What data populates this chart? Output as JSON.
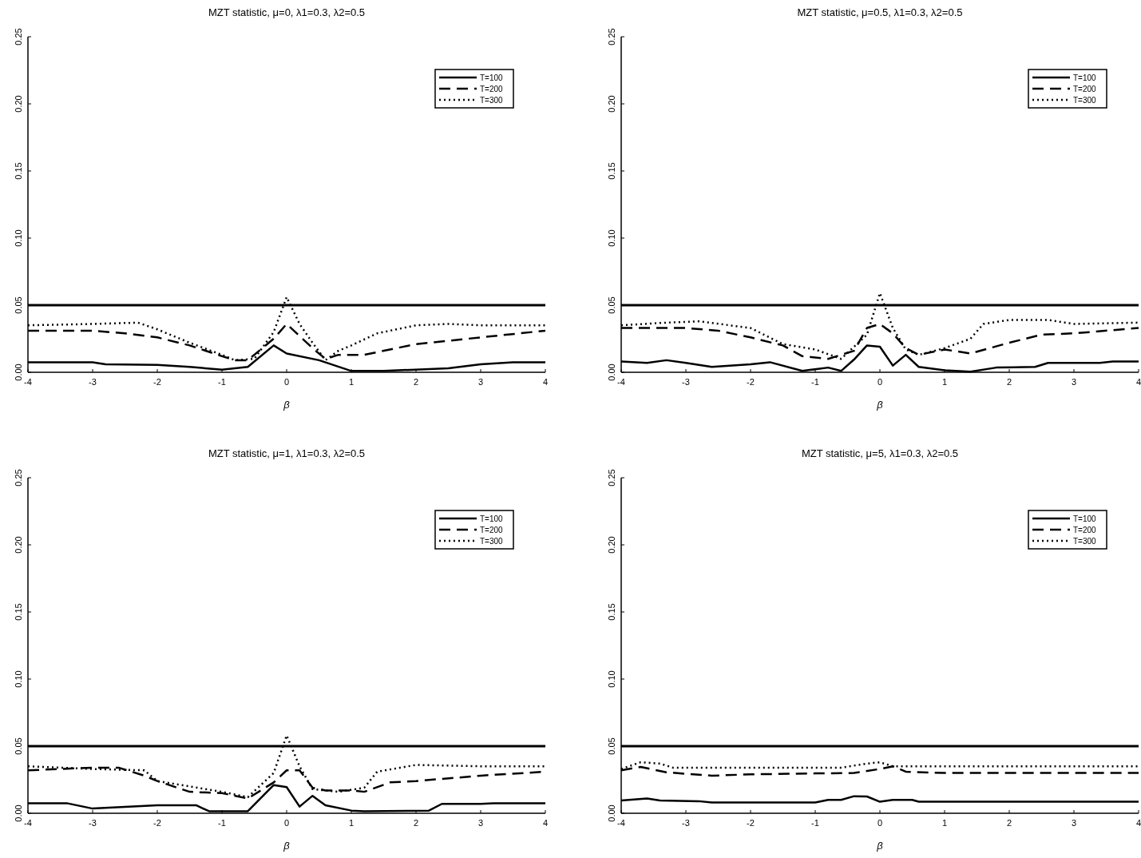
{
  "chart_data": [
    {
      "type": "line",
      "title": "MZT statistic, μ=0, λ1=0.3, λ2=0.5",
      "xlabel": "β",
      "xlim": [
        -4,
        4
      ],
      "xticks": [
        -4,
        -3,
        -2,
        -1,
        0,
        1,
        2,
        3,
        4
      ],
      "ylim": [
        0,
        0.25
      ],
      "yticks": [
        {
          "value": 0,
          "label": "0.00"
        },
        {
          "value": 0.05,
          "label": "0.05"
        },
        {
          "value": 0.1,
          "label": "0.10"
        },
        {
          "value": 0.15,
          "label": "0.15"
        },
        {
          "value": 0.2,
          "label": "0.20"
        },
        {
          "value": 0.25,
          "label": "0.25"
        }
      ],
      "legend": "top right",
      "ref_lines": [
        {
          "axis": "y",
          "value": 0.05,
          "color": "#000000",
          "line_style": "solid"
        }
      ],
      "series": [
        {
          "name": "T=100",
          "color": "#000000",
          "line_style": "solid",
          "x": [
            -4,
            -3,
            -2.8,
            -2,
            -1.5,
            -1,
            -0.6,
            -0.2,
            0,
            0.5,
            1,
            1.5,
            2.5,
            3,
            3.5,
            4
          ],
          "values": [
            0.0075,
            0.0075,
            0.006,
            0.0055,
            0.004,
            0.002,
            0.004,
            0.02,
            0.014,
            0.009,
            0.001,
            0.001,
            0.003,
            0.006,
            0.0075,
            0.0075
          ]
        },
        {
          "name": "T=200",
          "color": "#000000",
          "line_style": "dashed",
          "x": [
            -4,
            -3,
            -2.5,
            -2,
            -1.5,
            -1,
            -0.8,
            -0.6,
            -0.2,
            0,
            0.4,
            0.6,
            0.8,
            1.2,
            2,
            3,
            4
          ],
          "values": [
            0.031,
            0.031,
            0.029,
            0.026,
            0.02,
            0.012,
            0.009,
            0.009,
            0.025,
            0.036,
            0.018,
            0.01,
            0.013,
            0.013,
            0.021,
            0.026,
            0.031
          ]
        },
        {
          "name": "T=300",
          "color": "#000000",
          "line_style": "dotted",
          "x": [
            -4,
            -3,
            -2.3,
            -2,
            -1.5,
            -1,
            -0.8,
            -0.5,
            -0.2,
            0,
            0.2,
            0.4,
            0.6,
            0.8,
            1,
            1.4,
            2,
            2.5,
            3,
            4
          ],
          "values": [
            0.035,
            0.036,
            0.037,
            0.032,
            0.022,
            0.013,
            0.009,
            0.01,
            0.03,
            0.056,
            0.036,
            0.022,
            0.009,
            0.016,
            0.02,
            0.029,
            0.035,
            0.036,
            0.035,
            0.035
          ]
        }
      ]
    },
    {
      "type": "line",
      "title": "MZT statistic, μ=0.5, λ1=0.3, λ2=0.5",
      "xlabel": "β",
      "xlim": [
        -4,
        4
      ],
      "xticks": [
        -4,
        -3,
        -2,
        -1,
        0,
        1,
        2,
        3,
        4
      ],
      "ylim": [
        0,
        0.25
      ],
      "yticks": [
        {
          "value": 0,
          "label": "0.00"
        },
        {
          "value": 0.05,
          "label": "0.05"
        },
        {
          "value": 0.1,
          "label": "0.10"
        },
        {
          "value": 0.15,
          "label": "0.15"
        },
        {
          "value": 0.2,
          "label": "0.20"
        },
        {
          "value": 0.25,
          "label": "0.25"
        }
      ],
      "legend": "top right",
      "ref_lines": [
        {
          "axis": "y",
          "value": 0.05,
          "color": "#000000",
          "line_style": "solid"
        }
      ],
      "series": [
        {
          "name": "T=100",
          "color": "#000000",
          "line_style": "solid",
          "x": [
            -4,
            -3.6,
            -3.3,
            -3,
            -2.6,
            -2,
            -1.7,
            -1.2,
            -0.8,
            -0.6,
            -0.4,
            -0.2,
            0,
            0.2,
            0.4,
            0.6,
            1,
            1.4,
            1.8,
            2.4,
            2.6,
            3.4,
            3.6,
            4
          ],
          "values": [
            0.008,
            0.007,
            0.009,
            0.007,
            0.004,
            0.006,
            0.0075,
            0.001,
            0.0035,
            0.001,
            0.0095,
            0.02,
            0.019,
            0.005,
            0.013,
            0.004,
            0.0015,
            0.0005,
            0.0035,
            0.004,
            0.007,
            0.007,
            0.008,
            0.008
          ]
        },
        {
          "name": "T=200",
          "color": "#000000",
          "line_style": "dashed",
          "x": [
            -4,
            -3,
            -2.5,
            -2,
            -1.5,
            -1.2,
            -0.8,
            -0.4,
            -0.2,
            0,
            0.2,
            0.4,
            0.6,
            1,
            1.4,
            2,
            2.5,
            3,
            4
          ],
          "values": [
            0.033,
            0.033,
            0.031,
            0.026,
            0.02,
            0.012,
            0.01,
            0.016,
            0.033,
            0.036,
            0.029,
            0.018,
            0.013,
            0.017,
            0.014,
            0.022,
            0.028,
            0.029,
            0.033
          ]
        },
        {
          "name": "T=300",
          "color": "#000000",
          "line_style": "dotted",
          "x": [
            -4,
            -3.3,
            -2.8,
            -2,
            -1.5,
            -1,
            -0.6,
            -0.2,
            0,
            0.2,
            0.4,
            0.6,
            1,
            1.4,
            1.6,
            2,
            2.6,
            3,
            4
          ],
          "values": [
            0.035,
            0.037,
            0.038,
            0.033,
            0.021,
            0.017,
            0.01,
            0.028,
            0.059,
            0.033,
            0.017,
            0.013,
            0.018,
            0.025,
            0.036,
            0.039,
            0.039,
            0.036,
            0.037
          ]
        }
      ]
    },
    {
      "type": "line",
      "title": "MZT statistic, μ=1, λ1=0.3, λ2=0.5",
      "xlabel": "β",
      "xlim": [
        -4,
        4
      ],
      "xticks": [
        -4,
        -3,
        -2,
        -1,
        0,
        1,
        2,
        3,
        4
      ],
      "ylim": [
        0,
        0.25
      ],
      "yticks": [
        {
          "value": 0,
          "label": "0.00"
        },
        {
          "value": 0.05,
          "label": "0.05"
        },
        {
          "value": 0.1,
          "label": "0.10"
        },
        {
          "value": 0.15,
          "label": "0.15"
        },
        {
          "value": 0.2,
          "label": "0.20"
        },
        {
          "value": 0.25,
          "label": "0.25"
        }
      ],
      "legend": "top right",
      "ref_lines": [
        {
          "axis": "y",
          "value": 0.05,
          "color": "#000000",
          "line_style": "solid"
        }
      ],
      "series": [
        {
          "name": "T=100",
          "color": "#000000",
          "line_style": "solid",
          "x": [
            -4,
            -3.4,
            -3,
            -2,
            -1.4,
            -1.2,
            -0.6,
            -0.2,
            0,
            0.2,
            0.4,
            0.6,
            1,
            1.2,
            2.2,
            2.4,
            3,
            3.2,
            4
          ],
          "values": [
            0.0075,
            0.0075,
            0.0035,
            0.006,
            0.006,
            0.0015,
            0.0015,
            0.021,
            0.0195,
            0.005,
            0.013,
            0.006,
            0.002,
            0.0015,
            0.002,
            0.007,
            0.007,
            0.0075,
            0.0075
          ]
        },
        {
          "name": "T=200",
          "color": "#000000",
          "line_style": "dashed",
          "x": [
            -4,
            -3,
            -2.6,
            -2.2,
            -2,
            -1.5,
            -1,
            -0.6,
            -0.2,
            0,
            0.2,
            0.4,
            0.6,
            1,
            1.2,
            1.6,
            2,
            3,
            4
          ],
          "values": [
            0.032,
            0.034,
            0.034,
            0.028,
            0.024,
            0.016,
            0.015,
            0.011,
            0.023,
            0.032,
            0.032,
            0.019,
            0.017,
            0.017,
            0.016,
            0.023,
            0.024,
            0.028,
            0.031
          ]
        },
        {
          "name": "T=300",
          "color": "#000000",
          "line_style": "dotted",
          "x": [
            -4,
            -3,
            -2.2,
            -2,
            -1.5,
            -1,
            -0.6,
            -0.2,
            0,
            0.2,
            0.4,
            0.8,
            1.2,
            1.4,
            2,
            3,
            4
          ],
          "values": [
            0.035,
            0.033,
            0.032,
            0.024,
            0.02,
            0.016,
            0.012,
            0.03,
            0.058,
            0.035,
            0.018,
            0.016,
            0.019,
            0.031,
            0.036,
            0.035,
            0.035
          ]
        }
      ]
    },
    {
      "type": "line",
      "title": "MZT statistic, μ=5, λ1=0.3, λ2=0.5",
      "xlabel": "β",
      "xlim": [
        -4,
        4
      ],
      "xticks": [
        -4,
        -3,
        -2,
        -1,
        0,
        1,
        2,
        3,
        4
      ],
      "ylim": [
        0,
        0.25
      ],
      "yticks": [
        {
          "value": 0,
          "label": "0.00"
        },
        {
          "value": 0.05,
          "label": "0.05"
        },
        {
          "value": 0.1,
          "label": "0.10"
        },
        {
          "value": 0.15,
          "label": "0.15"
        },
        {
          "value": 0.2,
          "label": "0.20"
        },
        {
          "value": 0.25,
          "label": "0.25"
        }
      ],
      "legend": "top right",
      "ref_lines": [
        {
          "axis": "y",
          "value": 0.05,
          "color": "#000000",
          "line_style": "solid"
        }
      ],
      "series": [
        {
          "name": "T=100",
          "color": "#000000",
          "line_style": "solid",
          "x": [
            -4,
            -3.6,
            -3.4,
            -2.8,
            -2.6,
            -1,
            -0.8,
            -0.6,
            -0.4,
            -0.2,
            0,
            0.2,
            0.5,
            0.6,
            4
          ],
          "values": [
            0.0095,
            0.011,
            0.0095,
            0.009,
            0.008,
            0.008,
            0.01,
            0.01,
            0.0127,
            0.0125,
            0.0086,
            0.01,
            0.01,
            0.0086,
            0.0086
          ]
        },
        {
          "name": "T=200",
          "color": "#000000",
          "line_style": "dashed",
          "x": [
            -4,
            -3.7,
            -3.3,
            -2.6,
            -2,
            -1,
            -0.4,
            0,
            0.2,
            0.4,
            1,
            4
          ],
          "values": [
            0.032,
            0.0345,
            0.0305,
            0.028,
            0.029,
            0.0297,
            0.03,
            0.033,
            0.035,
            0.031,
            0.03,
            0.03
          ]
        },
        {
          "name": "T=300",
          "color": "#000000",
          "line_style": "dotted",
          "x": [
            -4,
            -3.7,
            -3.4,
            -3.2,
            -2,
            -0.6,
            -0.2,
            0,
            0.2,
            1,
            4
          ],
          "values": [
            0.033,
            0.038,
            0.037,
            0.034,
            0.034,
            0.034,
            0.037,
            0.038,
            0.035,
            0.035,
            0.035
          ]
        }
      ]
    }
  ]
}
